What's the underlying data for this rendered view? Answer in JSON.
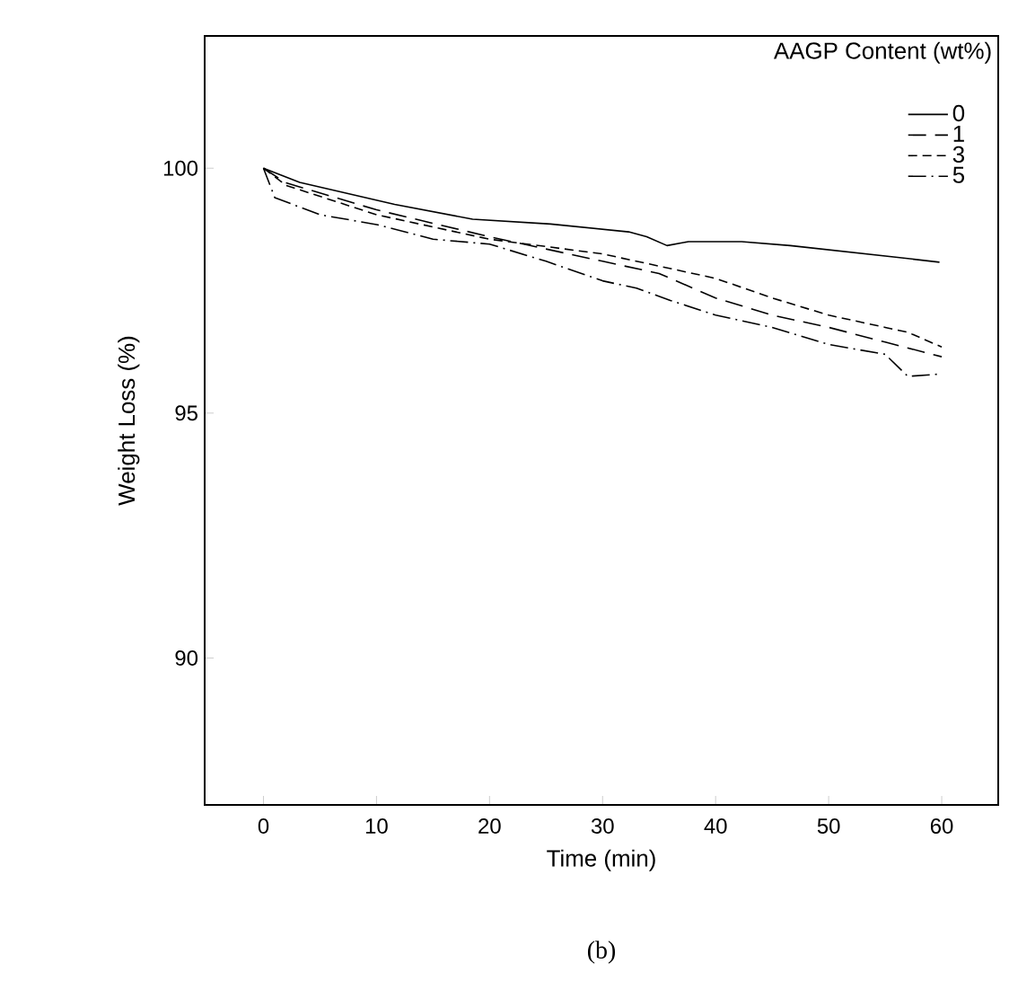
{
  "chart_data": {
    "type": "line",
    "xlabel": "Time (min)",
    "ylabel": "Weight Loss (%)",
    "legend_title": "AAGP Content (wt%)",
    "annotations": [
      "(b)"
    ],
    "xlim": [
      -5.2,
      65
    ],
    "ylim": [
      87,
      102.7
    ],
    "xticks": [
      0,
      10,
      20,
      30,
      40,
      50,
      60
    ],
    "yticks": [
      90,
      95,
      100
    ],
    "legend": "top right",
    "grid": false,
    "series": [
      {
        "name": "0",
        "color": "#000000",
        "line_style": "solid",
        "x": [
          0,
          3.2,
          11.6,
          18.5,
          25.4,
          32.3,
          33.9,
          35.7,
          37.6,
          42.3,
          46.6,
          56.1,
          59.8
        ],
        "values": [
          100,
          99.71,
          99.26,
          98.96,
          98.86,
          98.7,
          98.6,
          98.42,
          98.5,
          98.5,
          98.42,
          98.18,
          98.08
        ]
      },
      {
        "name": "1",
        "color": "#000000",
        "line_style": "dashed",
        "x": [
          0,
          2,
          10,
          20,
          30,
          35,
          40,
          45,
          50,
          55,
          60
        ],
        "values": [
          100,
          99.7,
          99.15,
          98.6,
          98.1,
          97.85,
          97.35,
          97.0,
          96.75,
          96.45,
          96.15
        ]
      },
      {
        "name": "3",
        "color": "#000000",
        "line_style": "dashed",
        "x": [
          0,
          2,
          10,
          20,
          30,
          35,
          40,
          45,
          50,
          55,
          57,
          60
        ],
        "values": [
          100,
          99.65,
          99.05,
          98.55,
          98.25,
          98.0,
          97.75,
          97.35,
          97.0,
          96.75,
          96.65,
          96.35
        ]
      },
      {
        "name": "5",
        "color": "#000000",
        "line_style": "dashed",
        "x": [
          0,
          1,
          5,
          10,
          15,
          20,
          25,
          30,
          33,
          36,
          40,
          45,
          50,
          55,
          57,
          60
        ],
        "values": [
          100,
          99.4,
          99.05,
          98.85,
          98.55,
          98.45,
          98.1,
          97.7,
          97.55,
          97.3,
          97.0,
          96.75,
          96.4,
          96.2,
          95.75,
          95.8
        ]
      }
    ]
  }
}
